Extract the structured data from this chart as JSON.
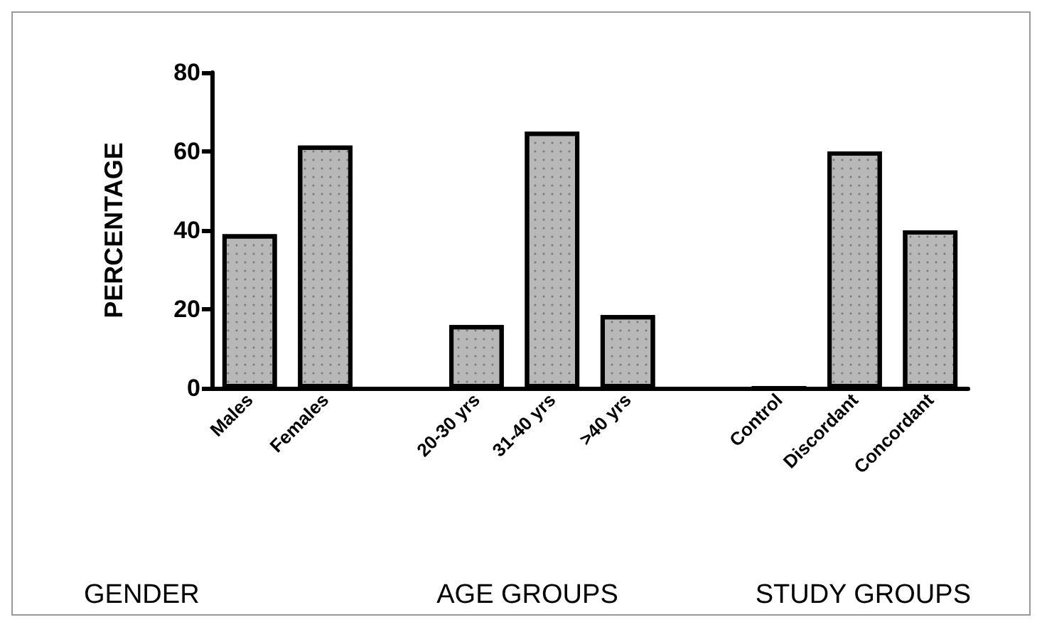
{
  "chart_data": {
    "type": "bar",
    "ylabel": "PERCENTAGE",
    "categories": [
      "Males",
      "Females",
      null,
      "20-30 yrs",
      "31-40 yrs",
      ">40 yrs",
      null,
      "Control",
      "Discordant",
      "Concordant"
    ],
    "values": [
      39,
      61.5,
      null,
      16,
      65,
      18.5,
      null,
      0,
      60,
      40
    ],
    "color": "#b8b8b8",
    "ylim": [
      0,
      80
    ],
    "yticks": [
      0,
      20,
      40,
      60,
      80
    ],
    "grid": false,
    "annotations": [
      "GENDER",
      "AGE GROUPS",
      "STUDY GROUPS"
    ]
  }
}
